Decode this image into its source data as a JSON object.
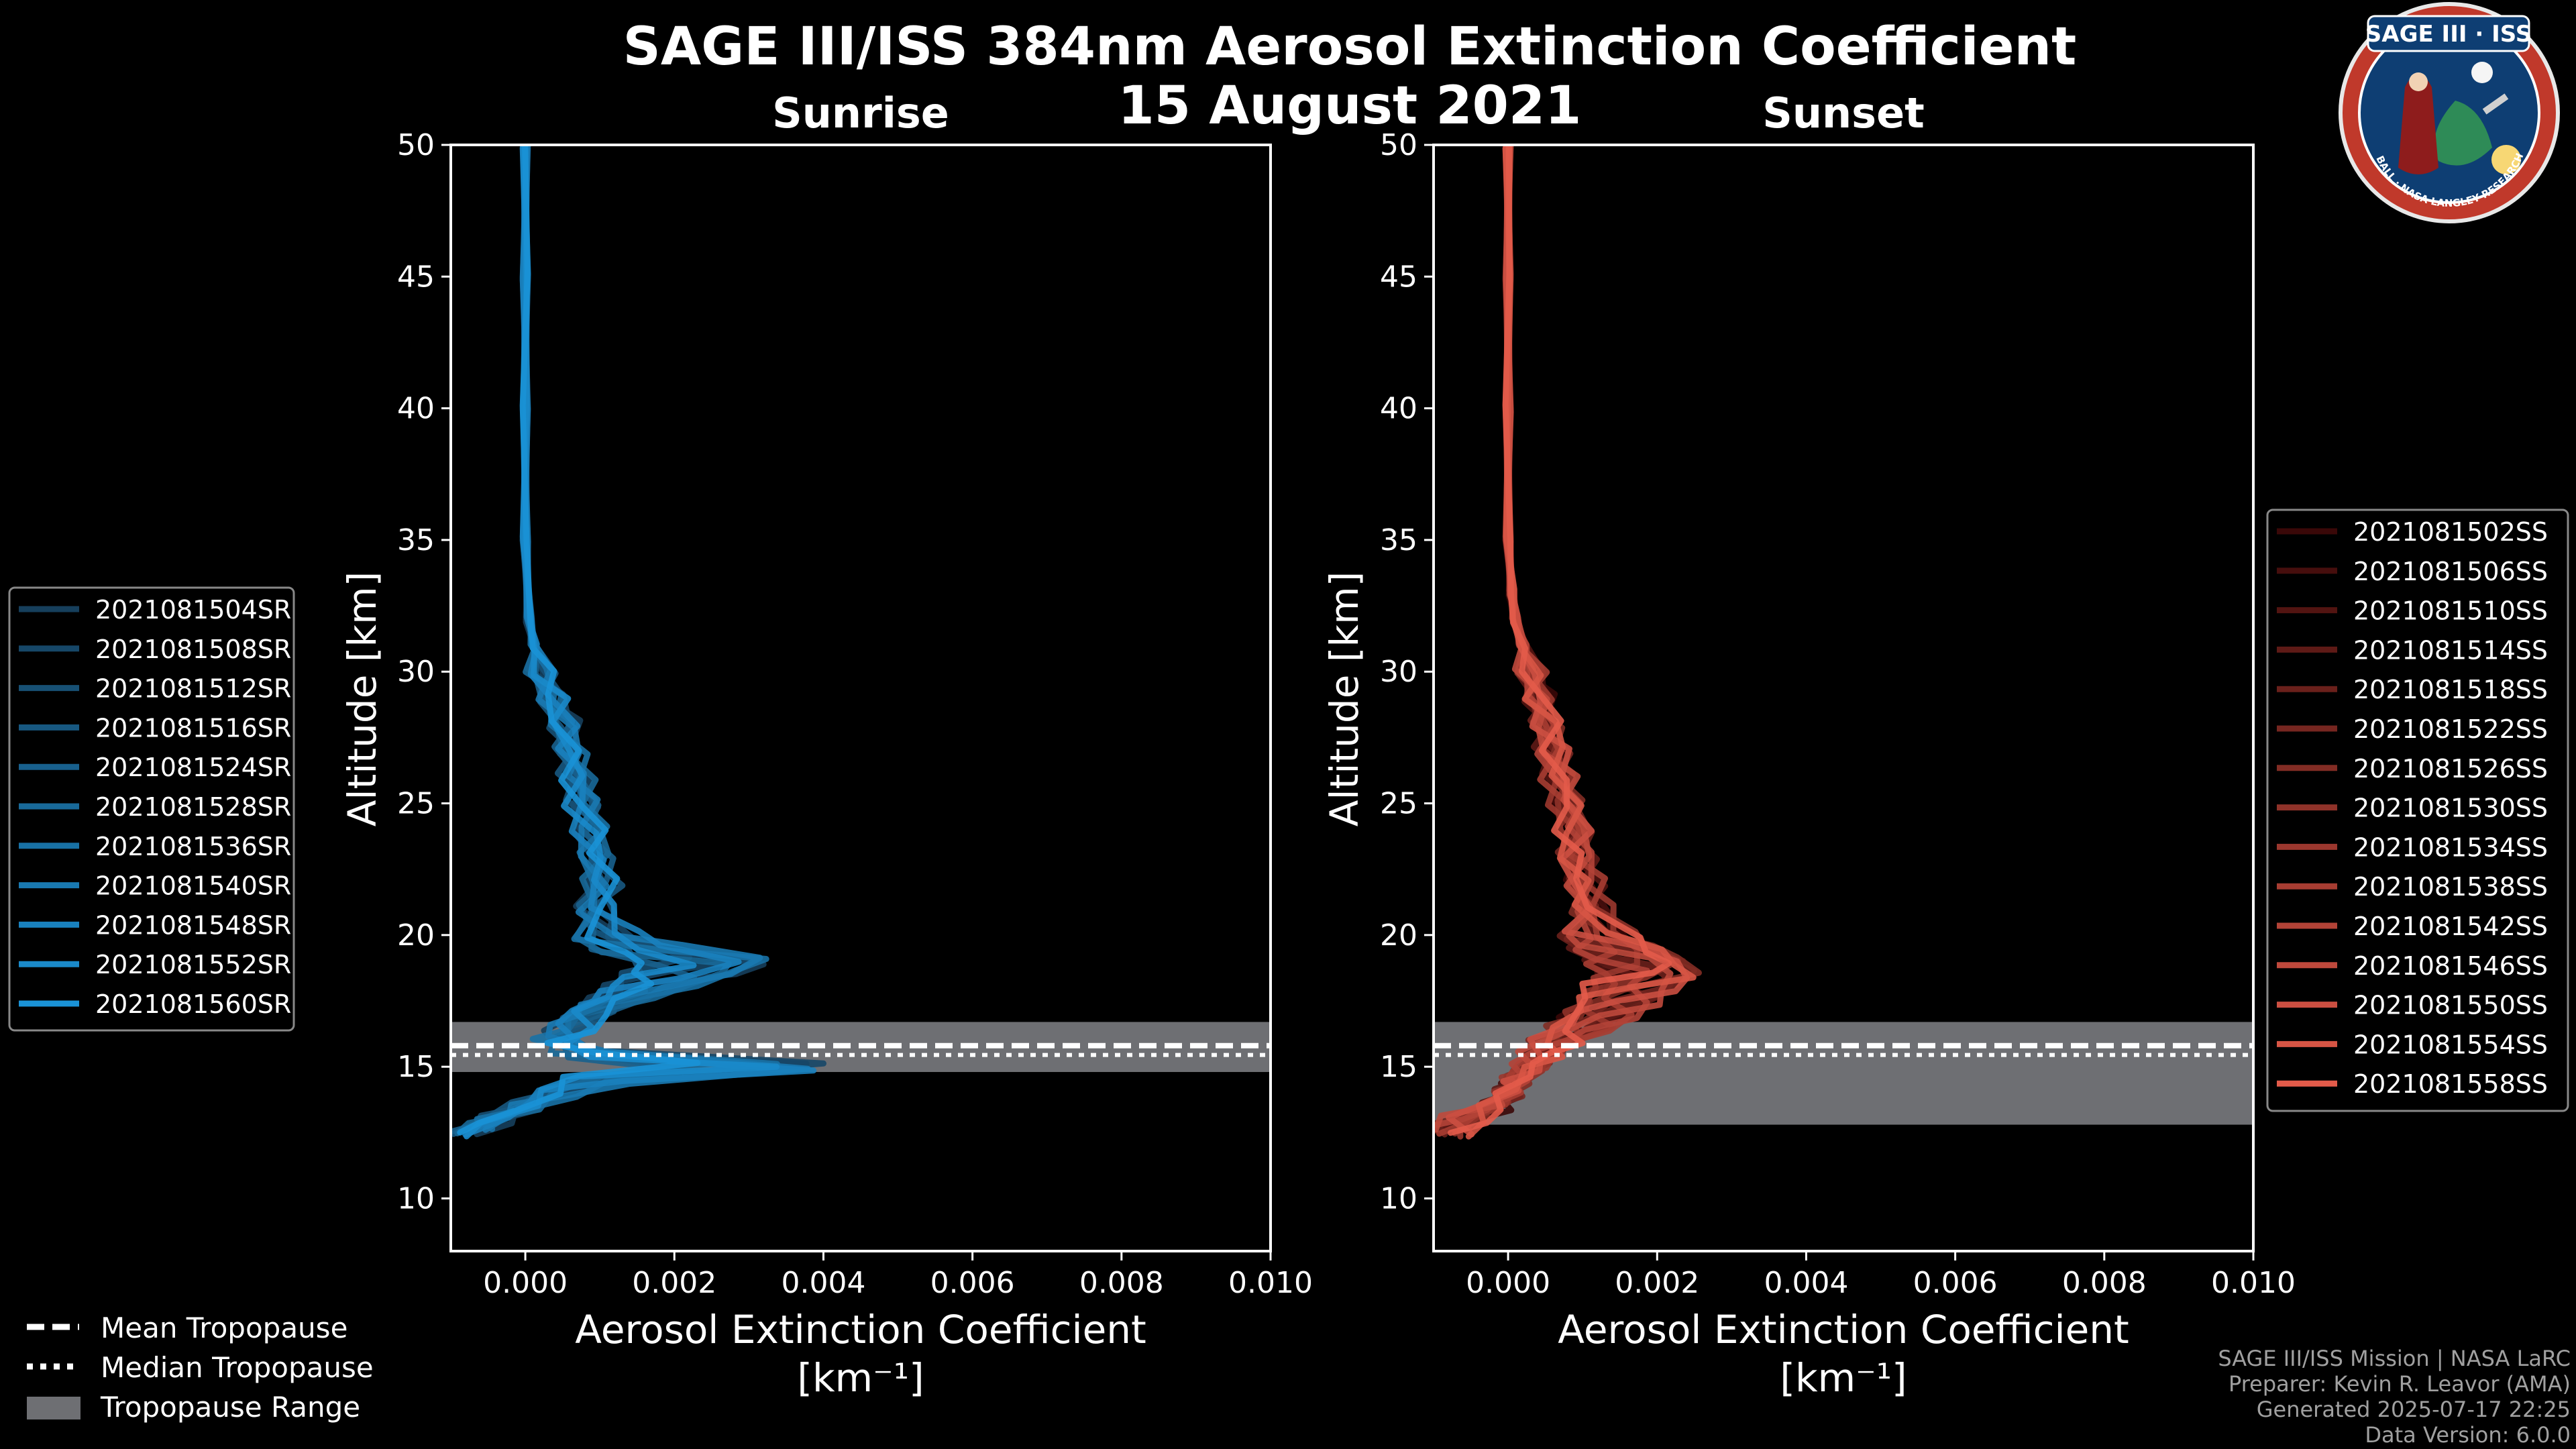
{
  "titles": {
    "main": "SAGE III/ISS 384nm Aerosol Extinction Coefficient",
    "date": "15 August 2021"
  },
  "colors": {
    "background": "#000000",
    "sunrise": "#1a8fd0",
    "sunset": "#e05a48",
    "tropopause_band": "#6e6f73"
  },
  "chart_data": [
    {
      "type": "line",
      "title": "Sunrise",
      "xlabel": "Aerosol Extinction Coefficient",
      "xlabel_units": "[km⁻¹]",
      "ylabel": "Altitude [km]",
      "xlim": [
        -0.001,
        0.01
      ],
      "ylim": [
        8,
        50
      ],
      "xticks": [
        "0.000",
        "0.002",
        "0.004",
        "0.006",
        "0.008",
        "0.010"
      ],
      "xtick_values": [
        0,
        0.002,
        0.004,
        0.006,
        0.008,
        0.01
      ],
      "yticks": [
        10,
        15,
        20,
        25,
        30,
        35,
        40,
        45,
        50
      ],
      "tropopause": {
        "mean": 15.8,
        "median": 15.7,
        "range": [
          14.8,
          16.7
        ]
      },
      "series_style": {
        "color_from": "#163f5c",
        "color_to": "#1a92d6"
      },
      "base_profile": {
        "alt": [
          50,
          45,
          40,
          35,
          32,
          31,
          30,
          29,
          28,
          27,
          26,
          25,
          24,
          23,
          22,
          21,
          20,
          19.5,
          19,
          18.5,
          18,
          17.5,
          17,
          16.5,
          16,
          15.5,
          15,
          14.5,
          14,
          13.5,
          13,
          12.5
        ],
        "val": [
          0.0,
          0.0,
          0.0,
          0.0,
          5e-05,
          0.00012,
          0.0002,
          0.00035,
          0.0005,
          0.0006,
          0.0007,
          0.0008,
          0.0009,
          0.00095,
          0.001,
          0.0009,
          0.001,
          0.0015,
          0.0025,
          0.0022,
          0.0017,
          0.0012,
          0.0008,
          0.0006,
          0.0004,
          0.0008,
          0.003,
          0.001,
          0.0004,
          0.0,
          -0.0005,
          -0.0008
        ]
      },
      "series": [
        {
          "name": "2021081504SR"
        },
        {
          "name": "2021081508SR"
        },
        {
          "name": "2021081512SR"
        },
        {
          "name": "2021081516SR"
        },
        {
          "name": "2021081524SR"
        },
        {
          "name": "2021081528SR"
        },
        {
          "name": "2021081536SR"
        },
        {
          "name": "2021081540SR"
        },
        {
          "name": "2021081548SR"
        },
        {
          "name": "2021081552SR"
        },
        {
          "name": "2021081560SR"
        }
      ]
    },
    {
      "type": "line",
      "title": "Sunset",
      "xlabel": "Aerosol Extinction Coefficient",
      "xlabel_units": "[km⁻¹]",
      "ylabel": "Altitude [km]",
      "xlim": [
        -0.001,
        0.01
      ],
      "ylim": [
        8,
        50
      ],
      "xticks": [
        "0.000",
        "0.002",
        "0.004",
        "0.006",
        "0.008",
        "0.010"
      ],
      "xtick_values": [
        0,
        0.002,
        0.004,
        0.006,
        0.008,
        0.01
      ],
      "yticks": [
        10,
        15,
        20,
        25,
        30,
        35,
        40,
        45,
        50
      ],
      "tropopause": {
        "mean": 15.8,
        "median": 15.7,
        "range": [
          12.8,
          16.7
        ]
      },
      "series_style": {
        "color_from": "#3a0808",
        "color_to": "#e35b4a"
      },
      "base_profile": {
        "alt": [
          50,
          45,
          40,
          35,
          33,
          32,
          31,
          30,
          29,
          28,
          27,
          26,
          25,
          24,
          23,
          22,
          21,
          20,
          19.5,
          19,
          18.5,
          18,
          17.5,
          17,
          16.5,
          16,
          15.5,
          15,
          14.5,
          14,
          13.5,
          13,
          12.5
        ],
        "val": [
          0.0,
          0.0,
          0.0,
          0.0,
          5e-05,
          0.0001,
          0.0002,
          0.0003,
          0.0004,
          0.0005,
          0.0006,
          0.0007,
          0.0008,
          0.0009,
          0.0009,
          0.001,
          0.0011,
          0.0012,
          0.0015,
          0.0018,
          0.0019,
          0.0016,
          0.0014,
          0.0012,
          0.001,
          0.0007,
          0.0005,
          0.0003,
          0.0001,
          0.0,
          -0.0002,
          -0.0006,
          -0.0008
        ]
      },
      "series": [
        {
          "name": "2021081502SS"
        },
        {
          "name": "2021081506SS"
        },
        {
          "name": "2021081510SS"
        },
        {
          "name": "2021081514SS"
        },
        {
          "name": "2021081518SS"
        },
        {
          "name": "2021081522SS"
        },
        {
          "name": "2021081526SS"
        },
        {
          "name": "2021081530SS"
        },
        {
          "name": "2021081534SS"
        },
        {
          "name": "2021081538SS"
        },
        {
          "name": "2021081542SS"
        },
        {
          "name": "2021081546SS"
        },
        {
          "name": "2021081550SS"
        },
        {
          "name": "2021081554SS"
        },
        {
          "name": "2021081558SS"
        }
      ]
    }
  ],
  "tropopause_legend": {
    "mean": "Mean Tropopause",
    "median": "Median Tropopause",
    "range": "Tropopause Range"
  },
  "logo": {
    "top_text": "SAGE III · ISS",
    "ring_text": "BALL · NASA LANGLEY RESEARCH CENTER · TAS-I · ESA"
  },
  "credits": {
    "line1": "SAGE III/ISS Mission | NASA LaRC",
    "line2": "Preparer: Kevin R. Leavor (AMA)",
    "line3": "Generated 2025-07-17 22:25",
    "line4": "Data Version: 6.0.0"
  }
}
